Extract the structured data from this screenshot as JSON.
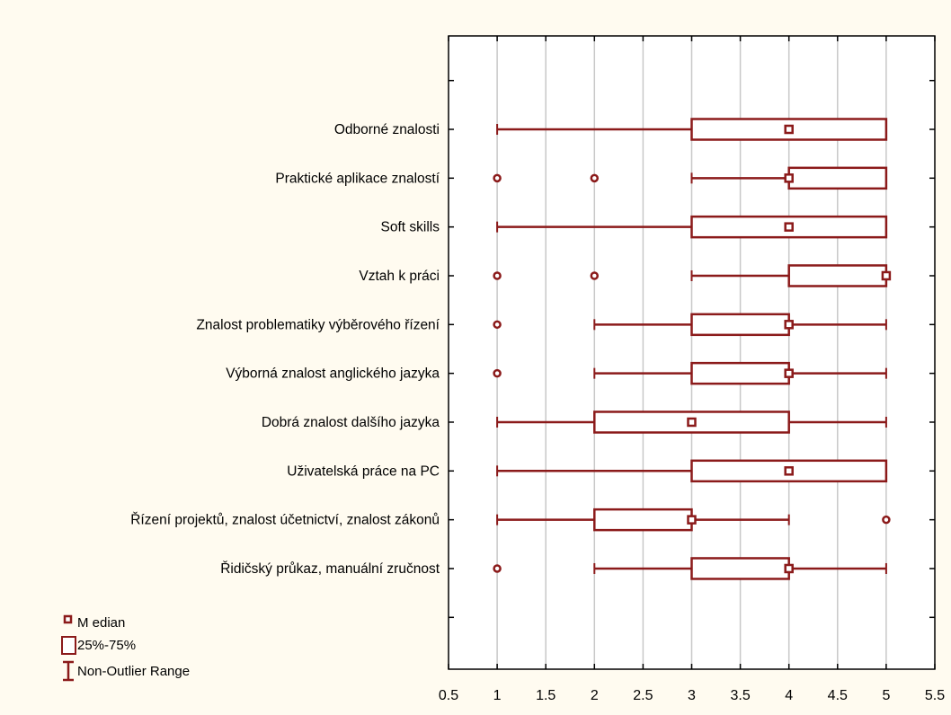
{
  "chart_data": {
    "type": "boxplot",
    "orientation": "horizontal",
    "xlim": [
      0.5,
      5.5
    ],
    "x_ticks": [
      "0.5",
      "1",
      "1.5",
      "2",
      "2.5",
      "3",
      "3.5",
      "4",
      "4.5",
      "5",
      "5.5"
    ],
    "x_tick_values": [
      0.5,
      1,
      1.5,
      2,
      2.5,
      3,
      3.5,
      4,
      4.5,
      5,
      5.5
    ],
    "grid": "vertical",
    "color": "#8b1a1a",
    "categories": [
      "Odborné znalosti",
      "Praktické aplikace znalostí",
      "Soft skills",
      "Vztah k práci",
      "Znalost problematiky výběrového řízení",
      "Výborná znalost anglického jazyka",
      "Dobrá znalost dalšího jazyka",
      "Uživatelská práce na PC",
      "Řízení projektů, znalost účetnictví, znalost zákonů",
      "Řidičský průkaz, manuální zručnost"
    ],
    "boxes": [
      {
        "min": 1,
        "q1": 3,
        "median": 4,
        "q3": 5,
        "max": 5,
        "outliers": []
      },
      {
        "min": 3,
        "q1": 4,
        "median": 4,
        "q3": 5,
        "max": 5,
        "outliers": [
          1,
          2
        ]
      },
      {
        "min": 1,
        "q1": 3,
        "median": 4,
        "q3": 5,
        "max": 5,
        "outliers": []
      },
      {
        "min": 3,
        "q1": 4,
        "median": 5,
        "q3": 5,
        "max": 5,
        "outliers": [
          1,
          2
        ]
      },
      {
        "min": 2,
        "q1": 3,
        "median": 4,
        "q3": 4,
        "max": 5,
        "outliers": [
          1
        ]
      },
      {
        "min": 2,
        "q1": 3,
        "median": 4,
        "q3": 4,
        "max": 5,
        "outliers": [
          1
        ]
      },
      {
        "min": 1,
        "q1": 2,
        "median": 3,
        "q3": 4,
        "max": 5,
        "outliers": []
      },
      {
        "min": 1,
        "q1": 3,
        "median": 4,
        "q3": 5,
        "max": 5,
        "outliers": []
      },
      {
        "min": 1,
        "q1": 2,
        "median": 3,
        "q3": 3,
        "max": 4,
        "outliers": [
          5
        ]
      },
      {
        "min": 2,
        "q1": 3,
        "median": 4,
        "q3": 4,
        "max": 5,
        "outliers": [
          1
        ]
      }
    ],
    "legend": {
      "placement": "bottom-left",
      "median": "M edian",
      "box": "25%-75%",
      "range": "Non-Outlier Range"
    }
  }
}
